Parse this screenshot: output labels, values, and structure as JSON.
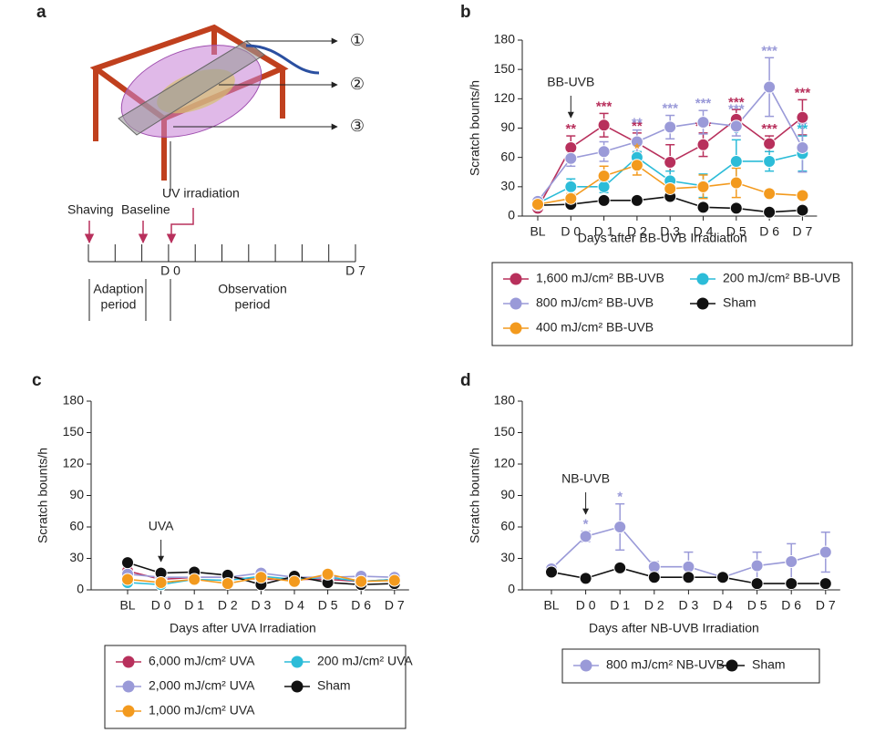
{
  "panel_a": {
    "label": "a",
    "markers": [
      "①",
      "②",
      "③"
    ],
    "events": [
      "Shaving",
      "Baseline",
      "UV irradiation"
    ],
    "days": [
      "D 0",
      "D 7"
    ],
    "periods": [
      [
        "Adaption",
        "period"
      ],
      [
        "Observation",
        "period"
      ]
    ]
  },
  "chart_data": [
    {
      "type": "line",
      "panel_label": "b",
      "annotation": "BB-UVB",
      "x_label": "Days after BB-UVB Irradiation",
      "y_label": "Scratch bounts/h",
      "categories": [
        "BL",
        "D 0",
        "D 1",
        "D 2",
        "D 3",
        "D 4",
        "D 5",
        "D 6",
        "D 7"
      ],
      "ylim": [
        0,
        180
      ],
      "yticks": [
        0,
        30,
        60,
        90,
        120,
        150,
        180
      ],
      "series": [
        {
          "name": "1,600 mJ/cm² BB-UVB",
          "color": "#b8305c",
          "values": [
            8,
            70,
            93,
            75,
            55,
            73,
            99,
            74,
            101
          ],
          "errors": [
            2,
            12,
            12,
            10,
            18,
            12,
            10,
            8,
            18
          ],
          "significance": [
            null,
            "**",
            "***",
            "**",
            null,
            "***",
            "***",
            "***",
            "***"
          ]
        },
        {
          "name": "200 mJ/cm² BB-UVB",
          "color": "#2cbcd8",
          "values": [
            13,
            30,
            30,
            60,
            36,
            31,
            56,
            56,
            64
          ],
          "errors": [
            2,
            8,
            6,
            6,
            10,
            12,
            22,
            10,
            18
          ],
          "significance": [
            null,
            null,
            null,
            null,
            null,
            null,
            "*",
            null,
            "**"
          ]
        },
        {
          "name": "800 mJ/cm² BB-UVB",
          "color": "#9a9ad8",
          "values": [
            15,
            59,
            66,
            76,
            91,
            96,
            92,
            132,
            70
          ],
          "errors": [
            3,
            8,
            10,
            12,
            12,
            12,
            10,
            30,
            25
          ],
          "significance": [
            null,
            null,
            null,
            "**",
            "***",
            "***",
            "***",
            "***",
            null
          ]
        },
        {
          "name": "Sham",
          "color": "#111111",
          "values": [
            11,
            12,
            16,
            16,
            20,
            9,
            8,
            4,
            6
          ],
          "errors": [
            2,
            3,
            3,
            3,
            4,
            2,
            2,
            2,
            2
          ]
        },
        {
          "name": "400 mJ/cm² BB-UVB",
          "color": "#f39a1e",
          "values": [
            12,
            18,
            41,
            52,
            28,
            30,
            34,
            23,
            21
          ],
          "errors": [
            2,
            5,
            10,
            10,
            8,
            12,
            15,
            4,
            3
          ],
          "significance": [
            null,
            null,
            null,
            "*",
            null,
            null,
            null,
            null,
            null
          ]
        }
      ]
    },
    {
      "type": "line",
      "panel_label": "c",
      "annotation": "UVA",
      "x_label": "Days after UVA Irradiation",
      "y_label": "Scratch bounts/h",
      "categories": [
        "BL",
        "D 0",
        "D 1",
        "D 2",
        "D 3",
        "D 4",
        "D 5",
        "D 6",
        "D 7"
      ],
      "ylim": [
        0,
        180
      ],
      "yticks": [
        0,
        30,
        60,
        90,
        120,
        150,
        180
      ],
      "series": [
        {
          "name": "6,000 mJ/cm² UVA",
          "color": "#b8305c",
          "values": [
            18,
            10,
            12,
            12,
            10,
            10,
            10,
            8,
            10
          ]
        },
        {
          "name": "200 mJ/cm² UVA",
          "color": "#2cbcd8",
          "values": [
            7,
            5,
            10,
            9,
            13,
            10,
            12,
            8,
            10
          ]
        },
        {
          "name": "2,000 mJ/cm² UVA",
          "color": "#9a9ad8",
          "values": [
            15,
            12,
            12,
            12,
            16,
            12,
            12,
            13,
            12
          ]
        },
        {
          "name": "Sham",
          "color": "#111111",
          "values": [
            26,
            16,
            17,
            14,
            5,
            13,
            7,
            5,
            6
          ]
        },
        {
          "name": "1,000 mJ/cm² UVA",
          "color": "#f39a1e",
          "values": [
            10,
            7,
            10,
            6,
            12,
            8,
            15,
            8,
            9
          ]
        }
      ]
    },
    {
      "type": "line",
      "panel_label": "d",
      "annotation": "NB-UVB",
      "x_label": "Days after NB-UVB Irradiation",
      "y_label": "Scratch bounts/h",
      "categories": [
        "BL",
        "D 0",
        "D 1",
        "D 2",
        "D 3",
        "D 4",
        "D 5",
        "D 6",
        "D 7"
      ],
      "ylim": [
        0,
        180
      ],
      "yticks": [
        0,
        30,
        60,
        90,
        120,
        150,
        180
      ],
      "series": [
        {
          "name": "800 mJ/cm² NB-UVB",
          "color": "#9a9ad8",
          "values": [
            20,
            51,
            60,
            22,
            22,
            12,
            23,
            27,
            36
          ],
          "errors": [
            2,
            5,
            22,
            5,
            14,
            4,
            13,
            17,
            19
          ],
          "significance": [
            null,
            "*",
            "*",
            null,
            null,
            null,
            null,
            null,
            null
          ]
        },
        {
          "name": "Sham",
          "color": "#111111",
          "values": [
            17,
            11,
            21,
            12,
            12,
            12,
            6,
            6,
            6
          ]
        }
      ]
    }
  ]
}
